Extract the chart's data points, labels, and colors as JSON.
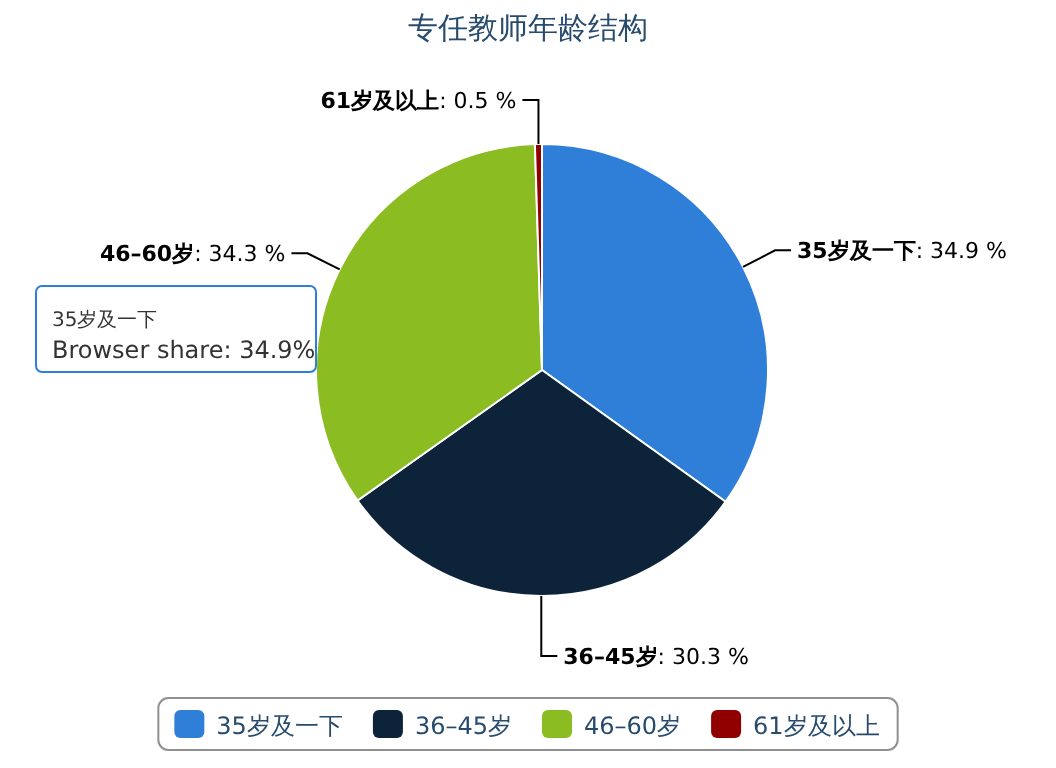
{
  "chart_data": {
    "type": "pie",
    "title": "专任教师年龄结构",
    "categories": [
      "35岁及一下",
      "36–45岁",
      "46–60岁",
      "61岁及以上"
    ],
    "values": [
      34.9,
      30.3,
      34.3,
      0.5
    ],
    "colors": [
      "#2f7ed8",
      "#0d233a",
      "#8bbc21",
      "#910000"
    ],
    "value_labels": [
      ": 34.9 %",
      ": 30.3 %",
      ": 34.3 %",
      ": 0.5 %"
    ],
    "legend": "bottom",
    "annotations": [
      "35岁及一下",
      "Browser share: 34.9%"
    ]
  }
}
